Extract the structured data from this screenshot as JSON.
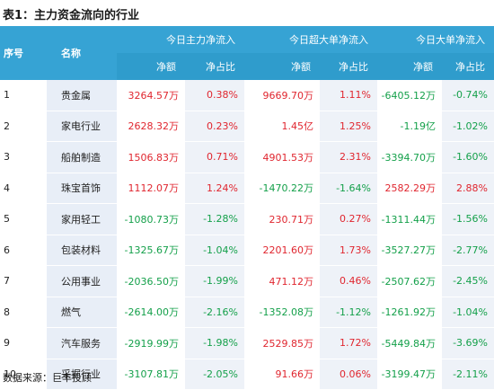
{
  "title": "表1：主力资金流向的行业",
  "headers": {
    "seq": "序号",
    "name": "名称",
    "group1": "今日主力净流入",
    "group2": "今日超大单净流入",
    "group3": "今日大单净流入",
    "net_amount": "净额",
    "net_ratio": "净占比"
  },
  "rows": [
    {
      "seq": "1",
      "name": "贵金属",
      "main_amt": "3264.57万",
      "main_pct": "0.38%",
      "super_amt": "9669.70万",
      "super_pct": "1.11%",
      "large_amt": "-6405.12万",
      "large_pct": "-0.74%"
    },
    {
      "seq": "2",
      "name": "家电行业",
      "main_amt": "2628.32万",
      "main_pct": "0.23%",
      "super_amt": "1.45亿",
      "super_pct": "1.25%",
      "large_amt": "-1.19亿",
      "large_pct": "-1.02%"
    },
    {
      "seq": "3",
      "name": "船舶制造",
      "main_amt": "1506.83万",
      "main_pct": "0.71%",
      "super_amt": "4901.53万",
      "super_pct": "2.31%",
      "large_amt": "-3394.70万",
      "large_pct": "-1.60%"
    },
    {
      "seq": "4",
      "name": "珠宝首饰",
      "main_amt": "1112.07万",
      "main_pct": "1.24%",
      "super_amt": "-1470.22万",
      "super_pct": "-1.64%",
      "large_amt": "2582.29万",
      "large_pct": "2.88%"
    },
    {
      "seq": "5",
      "name": "家用轻工",
      "main_amt": "-1080.73万",
      "main_pct": "-1.28%",
      "super_amt": "230.71万",
      "super_pct": "0.27%",
      "large_amt": "-1311.44万",
      "large_pct": "-1.56%"
    },
    {
      "seq": "6",
      "name": "包装材料",
      "main_amt": "-1325.67万",
      "main_pct": "-1.04%",
      "super_amt": "2201.60万",
      "super_pct": "1.73%",
      "large_amt": "-3527.27万",
      "large_pct": "-2.77%"
    },
    {
      "seq": "7",
      "name": "公用事业",
      "main_amt": "-2036.50万",
      "main_pct": "-1.99%",
      "super_amt": "471.12万",
      "super_pct": "0.46%",
      "large_amt": "-2507.62万",
      "large_pct": "-2.45%"
    },
    {
      "seq": "8",
      "name": "燃气",
      "main_amt": "-2614.00万",
      "main_pct": "-2.16%",
      "super_amt": "-1352.08万",
      "super_pct": "-1.12%",
      "large_amt": "-1261.92万",
      "large_pct": "-1.04%"
    },
    {
      "seq": "9",
      "name": "汽车服务",
      "main_amt": "-2919.99万",
      "main_pct": "-1.98%",
      "super_amt": "2529.85万",
      "super_pct": "1.72%",
      "large_amt": "-5449.84万",
      "large_pct": "-3.69%"
    },
    {
      "seq": "10",
      "name": "采掘行业",
      "main_amt": "-3107.81万",
      "main_pct": "-2.05%",
      "super_amt": "91.66万",
      "super_pct": "0.06%",
      "large_amt": "-3199.47万",
      "large_pct": "-2.11%"
    }
  ],
  "source": "数据来源：巨丰投顾",
  "colors": {
    "header_bg": "#36a3d4",
    "positive": "#e0262f",
    "negative": "#14a04a",
    "name_col_bg": "#e8eef7"
  }
}
